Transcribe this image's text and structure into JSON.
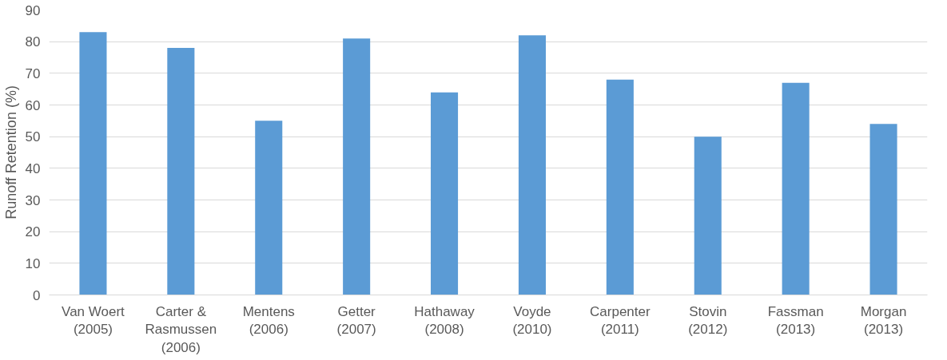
{
  "chart_data": {
    "type": "bar",
    "ylabel": "Runoff Retention (%)",
    "categories": [
      "Van Woert (2005)",
      "Carter & Rasmussen (2006)",
      "Mentens (2006)",
      "Getter (2007)",
      "Hathaway (2008)",
      "Voyde (2010)",
      "Carpenter (2011)",
      "Stovin (2012)",
      "Fassman (2013)",
      "Morgan (2013)"
    ],
    "values": [
      83,
      78,
      55,
      81,
      64,
      82,
      68,
      50,
      67,
      54
    ],
    "color": "#5b9bd5",
    "ylim": [
      0,
      90
    ],
    "yticks": [
      0,
      10,
      20,
      30,
      40,
      50,
      60,
      70,
      80,
      90
    ],
    "grid": "y"
  }
}
